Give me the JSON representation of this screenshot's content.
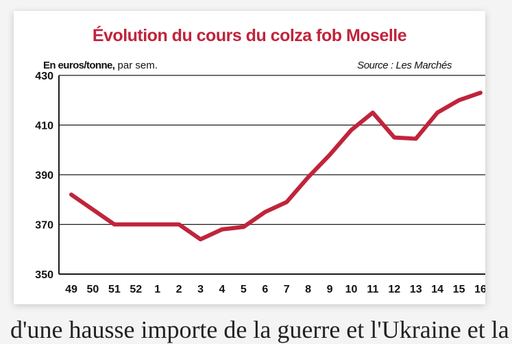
{
  "header": {
    "title": "Évolution du cours du colza fob Moselle",
    "unit_bold": "En euros/tonne,",
    "unit_rest": " par sem.",
    "source": "Source : Les Marchés"
  },
  "colors": {
    "title": "#c0243b",
    "line": "#c0243b",
    "grid": "#1a1a1a",
    "axis": "#1a1a1a"
  },
  "footer": {
    "partial_text": "d'une hausse importe de la guerre et l'Ukraine et la"
  },
  "chart_data": {
    "type": "line",
    "title": "Évolution du cours du colza fob Moselle",
    "xlabel": "",
    "ylabel": "En euros/tonne, par sem.",
    "categories": [
      "49",
      "50",
      "51",
      "52",
      "1",
      "2",
      "3",
      "4",
      "5",
      "6",
      "7",
      "8",
      "9",
      "10",
      "11",
      "12",
      "13",
      "14",
      "15",
      "16"
    ],
    "series": [
      {
        "values": [
          382,
          376,
          370,
          370,
          370,
          370,
          364,
          368,
          369,
          375,
          379,
          389,
          398,
          408,
          415,
          405,
          404.5,
          415,
          420,
          423
        ]
      }
    ],
    "ylim": [
      350,
      430
    ],
    "yticks": [
      350,
      370,
      390,
      410,
      430
    ],
    "grid": true,
    "legend": "none"
  }
}
